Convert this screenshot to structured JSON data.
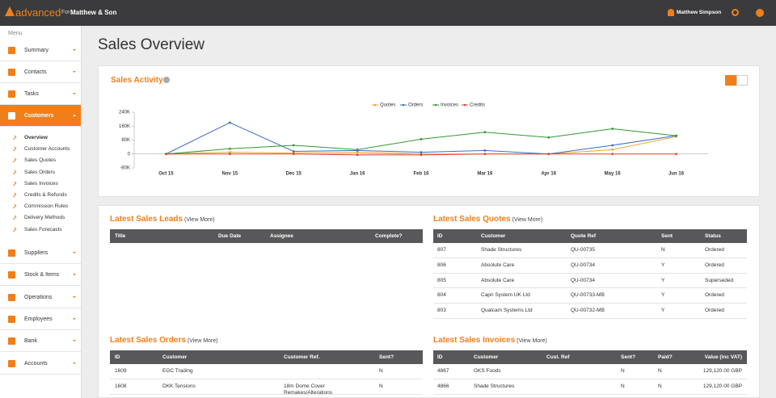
{
  "topbar": {
    "brand": "advanced",
    "for": "For",
    "company": "Matthew & Son",
    "user": "Matthew Simpson"
  },
  "sidebar": {
    "menu": "Menu",
    "items_top": [
      "Summary",
      "Contacts",
      "Tasks"
    ],
    "active": "Customers",
    "sub_items": [
      "Overview",
      "Customer Accounts",
      "Sales Quotes",
      "Sales Orders",
      "Sales Invoices",
      "Credits & Refunds",
      "Commission Rules",
      "Delivery Methods",
      "Sales Forecasts"
    ],
    "items_bottom": [
      "Suppliers",
      "Stock & Items",
      "Operations",
      "Employees",
      "Bank",
      "Accounts"
    ]
  },
  "page_title": "Sales Overview",
  "chart_data": {
    "type": "line",
    "title": "Sales Activity",
    "categories": [
      "Oct 15",
      "Nov 15",
      "Dec 15",
      "Jan 16",
      "Feb 16",
      "Mar 16",
      "Apr 16",
      "May 16",
      "Jun 16"
    ],
    "series": [
      {
        "name": "Quotes",
        "color": "#f0a030",
        "values": [
          0,
          10000,
          5000,
          10000,
          0,
          0,
          0,
          25000,
          100000
        ]
      },
      {
        "name": "Orders",
        "color": "#3a6fc4",
        "values": [
          0,
          180000,
          15000,
          20000,
          10000,
          20000,
          0,
          50000,
          105000
        ]
      },
      {
        "name": "Invoices",
        "color": "#2e9a2e",
        "values": [
          0,
          30000,
          50000,
          25000,
          85000,
          125000,
          95000,
          145000,
          105000
        ]
      },
      {
        "name": "Credits",
        "color": "#e04030",
        "values": [
          0,
          0,
          0,
          -5000,
          -5000,
          0,
          0,
          0,
          0
        ]
      }
    ],
    "ylim": [
      -80000,
      240000
    ],
    "yticks": [
      {
        "value": -80000,
        "label": "-80K"
      },
      0,
      {
        "value": 80000,
        "label": "80K"
      },
      {
        "value": 160000,
        "label": "160K"
      },
      {
        "value": 240000,
        "label": "240K"
      }
    ],
    "grid": false
  },
  "view_more": "View More",
  "tables": {
    "leads": {
      "title": "Latest Sales Leads",
      "columns": [
        "Title",
        "Due Date",
        "Assignee",
        "Complete?"
      ],
      "rows": []
    },
    "quotes": {
      "title": "Latest Sales Quotes",
      "columns": [
        "ID",
        "Customer",
        "Quote Ref",
        "Sent",
        "Status"
      ],
      "rows": [
        [
          "807",
          "Shade Structures",
          "QU-00735",
          "N",
          "Ordered"
        ],
        [
          "806",
          "Absolute Care",
          "QU-00734",
          "Y",
          "Ordered"
        ],
        [
          "805",
          "Absolute Care",
          "QU-00734",
          "Y",
          "Superseded"
        ],
        [
          "804",
          "Capri System UK Ltd",
          "QU-00733-MB",
          "Y",
          "Ordered"
        ],
        [
          "803",
          "Qualcam Systems Ltd",
          "QU-00732-MB",
          "Y",
          "Ordered"
        ]
      ]
    },
    "orders": {
      "title": "Latest Sales Orders",
      "columns": [
        "ID",
        "Customer",
        "Customer Ref.",
        "Sent?"
      ],
      "rows": [
        [
          "1609",
          "EGC Trading",
          null,
          "N"
        ],
        [
          "1608",
          "DKK Tensions",
          "18m Dome Cover Remakes/Alterations",
          "N"
        ]
      ]
    },
    "invoices": {
      "title": "Latest Sales Invoices",
      "columns": [
        "ID",
        "Customer",
        "Cust. Ref",
        "Sent?",
        "Paid?",
        "Value (inc VAT)"
      ],
      "rows": [
        [
          "4867",
          "GKS Foods",
          null,
          "N",
          "N",
          "129,120.00 GBP"
        ],
        [
          "4866",
          "Shade Structures",
          null,
          "N",
          "N",
          "129,120.00 GBP"
        ]
      ]
    }
  }
}
